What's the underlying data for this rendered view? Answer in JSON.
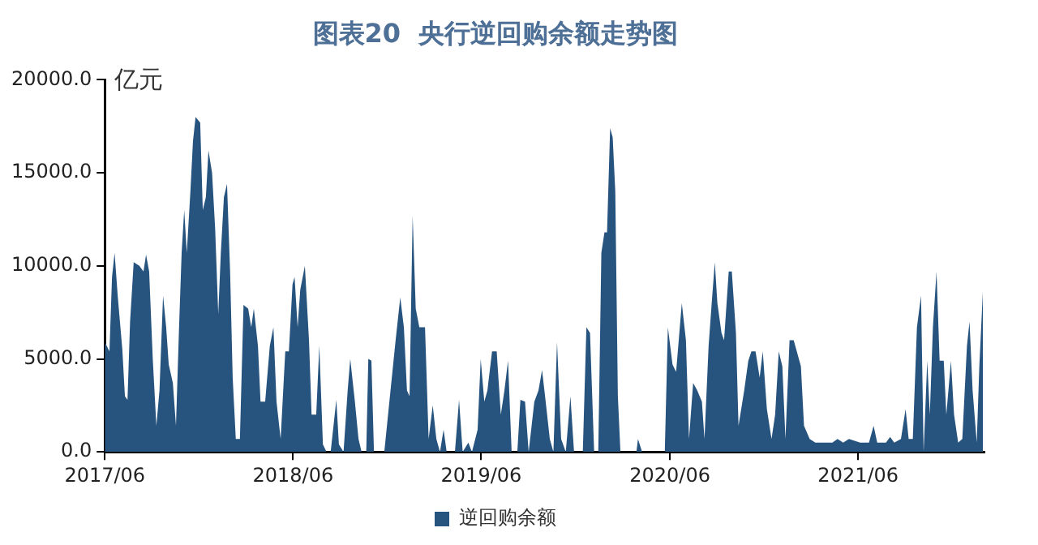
{
  "chart_data": {
    "type": "area",
    "title": "图表20  央行逆回购余额走势图",
    "ylabel": "亿元",
    "x": [
      "2017-06-01",
      "2017-06-10",
      "2017-06-15",
      "2017-06-20",
      "2017-06-26",
      "2017-07-05",
      "2017-07-10",
      "2017-07-15",
      "2017-07-20",
      "2017-07-27",
      "2017-08-07",
      "2017-08-15",
      "2017-08-20",
      "2017-08-26",
      "2017-09-02",
      "2017-09-09",
      "2017-09-15",
      "2017-09-22",
      "2017-09-28",
      "2017-10-03",
      "2017-10-11",
      "2017-10-17",
      "2017-10-23",
      "2017-10-28",
      "2017-11-02",
      "2017-11-07",
      "2017-11-14",
      "2017-11-19",
      "2017-11-24",
      "2017-12-03",
      "2017-12-08",
      "2017-12-14",
      "2017-12-19",
      "2017-12-26",
      "2018-01-01",
      "2018-01-07",
      "2018-01-12",
      "2018-01-18",
      "2018-01-24",
      "2018-01-30",
      "2018-02-04",
      "2018-02-10",
      "2018-02-18",
      "2018-02-25",
      "2018-03-06",
      "2018-03-12",
      "2018-03-17",
      "2018-03-25",
      "2018-03-30",
      "2018-04-08",
      "2018-04-17",
      "2018-04-24",
      "2018-04-30",
      "2018-05-08",
      "2018-05-17",
      "2018-05-24",
      "2018-05-31",
      "2018-06-04",
      "2018-06-10",
      "2018-06-15",
      "2018-06-24",
      "2018-07-02",
      "2018-07-07",
      "2018-07-16",
      "2018-07-22",
      "2018-07-29",
      "2018-08-05",
      "2018-08-13",
      "2018-08-24",
      "2018-08-29",
      "2018-09-07",
      "2018-09-15",
      "2018-09-20",
      "2018-09-29",
      "2018-10-06",
      "2018-10-12",
      "2018-10-21",
      "2018-10-25",
      "2018-10-31",
      "2018-11-05",
      "2018-11-25",
      "2018-12-17",
      "2018-12-26",
      "2019-01-02",
      "2019-01-08",
      "2019-01-13",
      "2019-01-19",
      "2019-01-25",
      "2019-02-01",
      "2019-02-12",
      "2019-02-19",
      "2019-02-27",
      "2019-03-06",
      "2019-03-13",
      "2019-03-20",
      "2019-03-26",
      "2019-04-11",
      "2019-04-19",
      "2019-04-26",
      "2019-05-07",
      "2019-05-14",
      "2019-05-25",
      "2019-05-31",
      "2019-06-07",
      "2019-06-13",
      "2019-06-22",
      "2019-07-01",
      "2019-07-09",
      "2019-07-16",
      "2019-07-23",
      "2019-07-30",
      "2019-08-10",
      "2019-08-16",
      "2019-08-25",
      "2019-09-01",
      "2019-09-12",
      "2019-09-20",
      "2019-09-27",
      "2019-10-04",
      "2019-10-12",
      "2019-10-19",
      "2019-10-26",
      "2019-11-03",
      "2019-11-12",
      "2019-11-21",
      "2019-11-28",
      "2019-12-15",
      "2019-12-22",
      "2019-12-29",
      "2020-01-06",
      "2020-01-14",
      "2020-01-20",
      "2020-01-26",
      "2020-01-31",
      "2020-02-06",
      "2020-02-11",
      "2020-02-16",
      "2020-02-21",
      "2020-02-26",
      "2020-03-28",
      "2020-03-31",
      "2020-04-08",
      "2020-05-22",
      "2020-05-28",
      "2020-06-06",
      "2020-06-13",
      "2020-06-24",
      "2020-07-02",
      "2020-07-08",
      "2020-07-16",
      "2020-07-24",
      "2020-08-02",
      "2020-08-07",
      "2020-08-15",
      "2020-08-21",
      "2020-08-27",
      "2020-09-01",
      "2020-09-09",
      "2020-09-14",
      "2020-09-23",
      "2020-09-29",
      "2020-10-07",
      "2020-10-12",
      "2020-10-23",
      "2020-10-31",
      "2020-11-06",
      "2020-11-14",
      "2020-11-22",
      "2020-11-28",
      "2020-12-06",
      "2020-12-15",
      "2020-12-22",
      "2020-12-29",
      "2021-01-05",
      "2021-01-11",
      "2021-01-19",
      "2021-01-27",
      "2021-02-02",
      "2021-02-10",
      "2021-02-16",
      "2021-02-27",
      "2021-03-10",
      "2021-04-12",
      "2021-04-22",
      "2021-05-03",
      "2021-05-14",
      "2021-06-05",
      "2021-06-22",
      "2021-07-01",
      "2021-07-08",
      "2021-07-25",
      "2021-08-02",
      "2021-08-10",
      "2021-08-23",
      "2021-09-01",
      "2021-09-07",
      "2021-09-15",
      "2021-09-23",
      "2021-10-01",
      "2021-10-06",
      "2021-10-13",
      "2021-10-18",
      "2021-10-24",
      "2021-10-31",
      "2021-11-06",
      "2021-11-14",
      "2021-11-19",
      "2021-11-28",
      "2021-12-04",
      "2021-12-12",
      "2021-12-20",
      "2021-12-29",
      "2022-01-03",
      "2022-01-09",
      "2022-01-17",
      "2022-01-22",
      "2022-01-29"
    ],
    "series": [
      {
        "name": "逆回购余额",
        "color": "#27547f",
        "values": [
          5900,
          5400,
          9400,
          10700,
          8400,
          5500,
          3000,
          2800,
          7000,
          10200,
          10000,
          9700,
          10600,
          9700,
          5000,
          1400,
          3300,
          8400,
          6700,
          4700,
          3700,
          1400,
          6700,
          10700,
          13000,
          10700,
          14000,
          16700,
          18000,
          17700,
          13000,
          13700,
          16200,
          15000,
          12000,
          7400,
          10700,
          13700,
          14400,
          9700,
          4000,
          700,
          700,
          7900,
          7700,
          6700,
          7700,
          5700,
          2700,
          2700,
          5700,
          6700,
          2700,
          700,
          5400,
          5400,
          9000,
          9400,
          6700,
          8700,
          10000,
          6000,
          2000,
          2000,
          5700,
          400,
          0,
          0,
          2800,
          400,
          0,
          3300,
          5000,
          2700,
          700,
          0,
          0,
          5000,
          4900,
          0,
          0,
          6000,
          8300,
          6700,
          3300,
          3000,
          12700,
          7700,
          6700,
          6700,
          700,
          2500,
          700,
          0,
          1200,
          0,
          0,
          2800,
          0,
          500,
          0,
          1200,
          5000,
          2700,
          3300,
          5400,
          5400,
          2000,
          3300,
          4900,
          0,
          0,
          2800,
          2700,
          0,
          2700,
          3300,
          4400,
          2700,
          700,
          0,
          5900,
          700,
          0,
          3000,
          0,
          0,
          6700,
          6400,
          0,
          0,
          10700,
          11800,
          11800,
          17400,
          16900,
          14000,
          3000,
          0,
          0,
          700,
          0,
          0,
          6700,
          4700,
          4300,
          8000,
          6000,
          700,
          3700,
          3300,
          2700,
          700,
          5700,
          8000,
          10200,
          8000,
          6400,
          6000,
          9700,
          9700,
          6400,
          1400,
          3300,
          4900,
          5400,
          5400,
          4000,
          5400,
          2300,
          700,
          2000,
          5400,
          4600,
          700,
          6000,
          6000,
          5400,
          4600,
          1400,
          700,
          500,
          500,
          700,
          500,
          700,
          500,
          500,
          1400,
          500,
          500,
          800,
          500,
          700,
          2300,
          700,
          700,
          6700,
          8400,
          0,
          4900,
          2000,
          6700,
          9700,
          4900,
          4900,
          2000,
          4900,
          2000,
          500,
          700,
          5700,
          7000,
          3300,
          500,
          4600,
          8700
        ]
      }
    ],
    "xlim": [
      "2017-06-01",
      "2022-02-01"
    ],
    "xticks": [
      {
        "value": "2017-06-01",
        "label": "2017/06"
      },
      {
        "value": "2018-06-01",
        "label": "2018/06"
      },
      {
        "value": "2019-06-01",
        "label": "2019/06"
      },
      {
        "value": "2020-06-01",
        "label": "2020/06"
      },
      {
        "value": "2021-06-01",
        "label": "2021/06"
      }
    ],
    "ylim": [
      0,
      20000
    ],
    "yticks": [
      {
        "value": 0,
        "label": "0.0"
      },
      {
        "value": 5000,
        "label": "5000.0"
      },
      {
        "value": 10000,
        "label": "10000.0"
      },
      {
        "value": 15000,
        "label": "15000.0"
      },
      {
        "value": 20000,
        "label": "20000.0"
      }
    ],
    "grid": false,
    "legend": "bottom",
    "marker": "none"
  }
}
